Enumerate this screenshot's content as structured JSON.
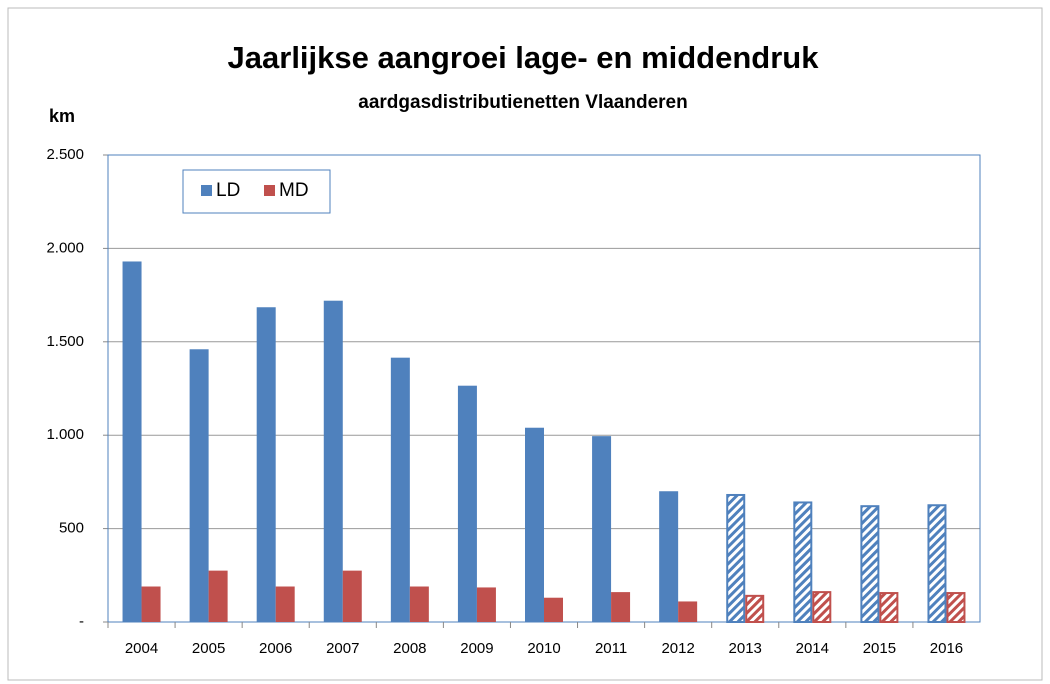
{
  "chart_data": {
    "type": "bar",
    "title": "Jaarlijkse aangroei lage- en middendruk",
    "subtitle": "aardgasdistributienetten Vlaanderen",
    "y_label": "km",
    "categories": [
      "2004",
      "2005",
      "2006",
      "2007",
      "2008",
      "2009",
      "2010",
      "2011",
      "2012",
      "2013",
      "2014",
      "2015",
      "2016"
    ],
    "series": [
      {
        "name": "LD",
        "color": "#4f81bd",
        "values": [
          1930,
          1460,
          1685,
          1720,
          1415,
          1265,
          1040,
          995,
          700,
          680,
          640,
          620,
          625
        ]
      },
      {
        "name": "MD",
        "color": "#c0504d",
        "values": [
          190,
          275,
          190,
          275,
          190,
          185,
          130,
          160,
          110,
          140,
          160,
          155,
          155
        ]
      }
    ],
    "hatched": [
      false,
      false,
      false,
      false,
      false,
      false,
      false,
      false,
      false,
      true,
      true,
      true,
      true
    ],
    "ylim": [
      0,
      2500
    ],
    "yticks": [
      {
        "value": 0,
        "label": "-"
      },
      500,
      {
        "value": 1000,
        "label": "1.000"
      },
      {
        "value": 1500,
        "label": "1.500"
      },
      {
        "value": 2000,
        "label": "2.000"
      },
      {
        "value": 2500,
        "label": "2.500"
      }
    ],
    "grid": true,
    "legend": "top-left"
  }
}
